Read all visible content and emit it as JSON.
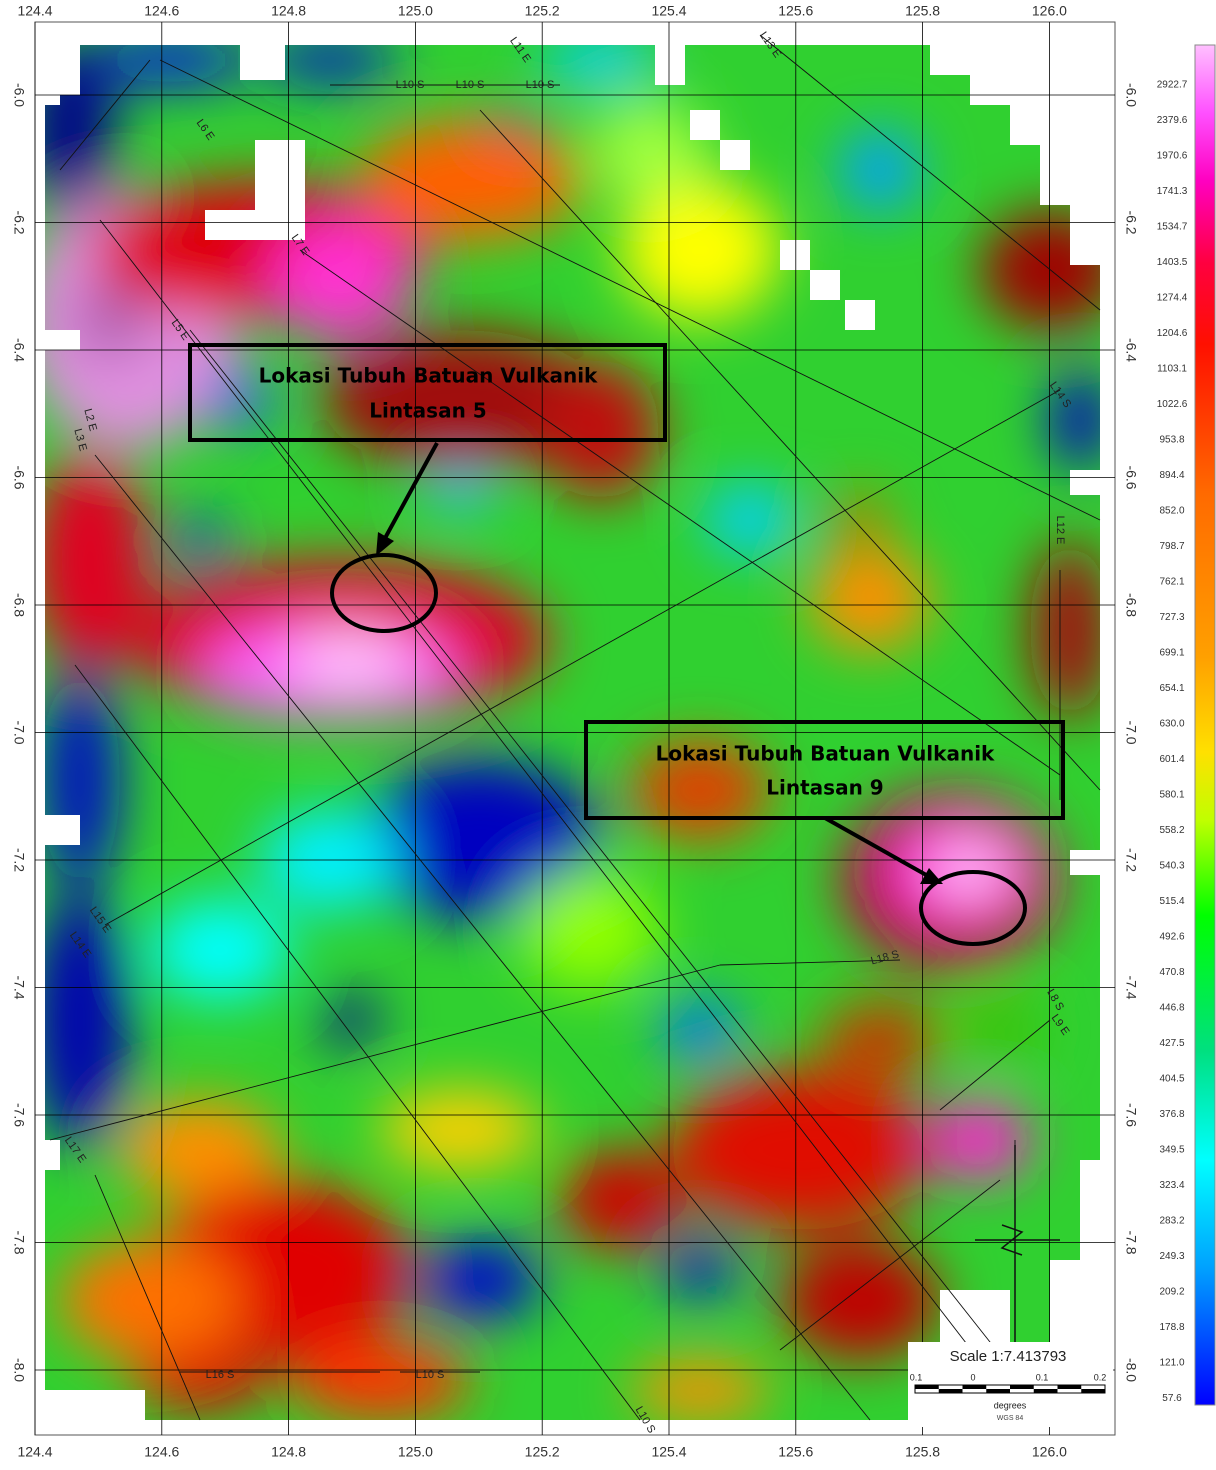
{
  "map": {
    "x_ticks": [
      "124.4",
      "124.6",
      "124.8",
      "125.0",
      "125.2",
      "125.4",
      "125.6",
      "125.8",
      "126.0"
    ],
    "y_ticks": [
      "-6.0",
      "-6.2",
      "-6.4",
      "-6.6",
      "-6.8",
      "-7.0",
      "-7.2",
      "-7.4",
      "-7.6",
      "-7.8",
      "-8.0"
    ],
    "colorbar_labels": [
      "2922.7",
      "2379.6",
      "1970.6",
      "1741.3",
      "1534.7",
      "1403.5",
      "1274.4",
      "1204.6",
      "1103.1",
      "1022.6",
      "953.8",
      "894.4",
      "852.0",
      "798.7",
      "762.1",
      "727.3",
      "699.1",
      "654.1",
      "630.0",
      "601.4",
      "580.1",
      "558.2",
      "540.3",
      "515.4",
      "492.6",
      "470.8",
      "446.8",
      "427.5",
      "404.5",
      "376.8",
      "349.5",
      "323.4",
      "283.2",
      "249.3",
      "209.2",
      "178.8",
      "121.0",
      "57.6"
    ],
    "annotations": [
      {
        "title": "Lokasi Tubuh Batuan Vulkanik",
        "subtitle": "Lintasan 5"
      },
      {
        "title": "Lokasi Tubuh Batuan Vulkanik",
        "subtitle": "Lintasan 9"
      }
    ],
    "scale": "Scale 1:7.413793",
    "scale_ticks": [
      "0.1",
      "0",
      "0.1",
      "0.2"
    ],
    "scale_unit": "degrees",
    "scale_datum": "WGS 84",
    "line_labels": [
      "L10 S",
      "L10 S",
      "L10 S",
      "L13 E",
      "L11 E",
      "L6 E",
      "L5 E",
      "L7 E",
      "L2 E",
      "L3 E",
      "L12 E",
      "L14 S",
      "L15 E",
      "L14 E",
      "L18 S",
      "L17 E",
      "L16 S",
      "L9 E",
      "L8 S",
      "L10 S",
      "L10 S"
    ]
  }
}
